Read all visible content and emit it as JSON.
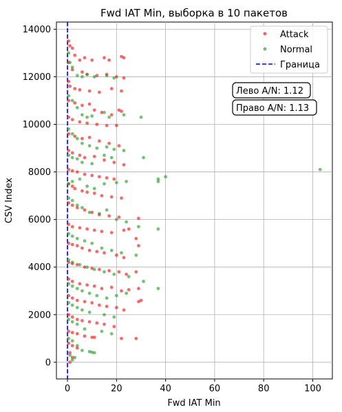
{
  "chart_data": {
    "type": "scatter",
    "title": "Fwd IAT Min, выборка в 10 пакетов",
    "xlabel": "Fwd IAT Min",
    "ylabel": "CSV Index",
    "xlim": [
      -4.5,
      108
    ],
    "ylim": [
      -700,
      14300
    ],
    "xticks": [
      0,
      20,
      40,
      60,
      80,
      100
    ],
    "yticks": [
      0,
      2000,
      4000,
      6000,
      8000,
      10000,
      12000,
      14000
    ],
    "grid": true,
    "legend_position": "top-right",
    "threshold": {
      "name": "Граница",
      "x": 0,
      "color": "#0000cc"
    },
    "annotations": [
      {
        "text": "Лево A/N: 1.12"
      },
      {
        "text": "Право A/N: 1.13"
      }
    ],
    "series": [
      {
        "name": "Attack",
        "color": "#ee1c1c",
        "points": [
          [
            0.5,
            13500
          ],
          [
            1,
            13300
          ],
          [
            2,
            13200
          ],
          [
            3,
            12900
          ],
          [
            5,
            12700
          ],
          [
            7,
            12800
          ],
          [
            10,
            12700
          ],
          [
            15,
            12800
          ],
          [
            17,
            12700
          ],
          [
            22,
            12850
          ],
          [
            23,
            12800
          ],
          [
            0.5,
            12600
          ],
          [
            2,
            12300
          ],
          [
            6,
            12200
          ],
          [
            8,
            12100
          ],
          [
            12,
            12050
          ],
          [
            16,
            12100
          ],
          [
            20,
            12000
          ],
          [
            23,
            11950
          ],
          [
            0.5,
            11800
          ],
          [
            1,
            11600
          ],
          [
            3,
            11500
          ],
          [
            5,
            11450
          ],
          [
            9,
            11400
          ],
          [
            13,
            11350
          ],
          [
            18,
            11500
          ],
          [
            22,
            11400
          ],
          [
            0.5,
            11000
          ],
          [
            3,
            10900
          ],
          [
            6,
            10800
          ],
          [
            9,
            10850
          ],
          [
            11,
            10600
          ],
          [
            14,
            10500
          ],
          [
            18,
            10400
          ],
          [
            21,
            10600
          ],
          [
            22,
            10550
          ],
          [
            0.5,
            10300
          ],
          [
            2,
            10200
          ],
          [
            5,
            10100
          ],
          [
            8,
            10050
          ],
          [
            12,
            10000
          ],
          [
            16,
            9950
          ],
          [
            20,
            9950
          ],
          [
            0.5,
            9600
          ],
          [
            3,
            9500
          ],
          [
            6,
            9400
          ],
          [
            9,
            9450
          ],
          [
            13,
            9300
          ],
          [
            17,
            9200
          ],
          [
            21,
            9100
          ],
          [
            0.5,
            8900
          ],
          [
            2,
            8800
          ],
          [
            5,
            8700
          ],
          [
            7,
            8600
          ],
          [
            11,
            8650
          ],
          [
            15,
            8500
          ],
          [
            19,
            8400
          ],
          [
            23,
            8300
          ],
          [
            0.5,
            8100
          ],
          [
            2,
            8050
          ],
          [
            4,
            8000
          ],
          [
            7,
            7900
          ],
          [
            10,
            7850
          ],
          [
            13,
            7800
          ],
          [
            16,
            7750
          ],
          [
            19,
            7700
          ],
          [
            0.5,
            7500
          ],
          [
            2,
            7400
          ],
          [
            3,
            7300
          ],
          [
            6,
            7200
          ],
          [
            8,
            7150
          ],
          [
            11,
            7100
          ],
          [
            14,
            7000
          ],
          [
            18,
            6950
          ],
          [
            22,
            6900
          ],
          [
            0.5,
            6700
          ],
          [
            2,
            6600
          ],
          [
            4,
            6500
          ],
          [
            7,
            6400
          ],
          [
            10,
            6300
          ],
          [
            13,
            6200
          ],
          [
            17,
            6150
          ],
          [
            21,
            6100
          ],
          [
            29,
            6050
          ],
          [
            0.5,
            5800
          ],
          [
            2,
            5700
          ],
          [
            5,
            5650
          ],
          [
            8,
            5600
          ],
          [
            11,
            5550
          ],
          [
            14,
            5500
          ],
          [
            18,
            5450
          ],
          [
            23,
            5550
          ],
          [
            25,
            5600
          ],
          [
            28,
            5200
          ],
          [
            0.5,
            5000
          ],
          [
            2,
            4950
          ],
          [
            4,
            4900
          ],
          [
            6,
            4800
          ],
          [
            9,
            4700
          ],
          [
            12,
            4650
          ],
          [
            15,
            4600
          ],
          [
            20,
            4500
          ],
          [
            23,
            4400
          ],
          [
            29,
            4900
          ],
          [
            0.5,
            4200
          ],
          [
            2,
            4150
          ],
          [
            4,
            4100
          ],
          [
            7,
            4000
          ],
          [
            10,
            3950
          ],
          [
            13,
            3900
          ],
          [
            17,
            3850
          ],
          [
            21,
            3800
          ],
          [
            24,
            3700
          ],
          [
            28,
            3800
          ],
          [
            0.5,
            3500
          ],
          [
            2,
            3400
          ],
          [
            5,
            3300
          ],
          [
            8,
            3250
          ],
          [
            11,
            3200
          ],
          [
            14,
            3100
          ],
          [
            18,
            3150
          ],
          [
            22,
            3000
          ],
          [
            25,
            3050
          ],
          [
            29,
            3100
          ],
          [
            0.5,
            2800
          ],
          [
            2,
            2700
          ],
          [
            4,
            2600
          ],
          [
            7,
            2550
          ],
          [
            10,
            2500
          ],
          [
            13,
            2400
          ],
          [
            16,
            2350
          ],
          [
            20,
            2300
          ],
          [
            23,
            2200
          ],
          [
            30,
            2600
          ],
          [
            29,
            2550
          ],
          [
            0.5,
            2000
          ],
          [
            2,
            1900
          ],
          [
            4,
            1800
          ],
          [
            6,
            1750
          ],
          [
            9,
            1700
          ],
          [
            12,
            1650
          ],
          [
            15,
            1600
          ],
          [
            19,
            1500
          ],
          [
            0.5,
            1300
          ],
          [
            2,
            1250
          ],
          [
            4,
            1200
          ],
          [
            7,
            1100
          ],
          [
            10,
            1050
          ],
          [
            11,
            1050
          ],
          [
            22,
            1000
          ],
          [
            28,
            1000
          ],
          [
            0.5,
            800
          ],
          [
            2,
            700
          ],
          [
            4,
            600
          ],
          [
            1,
            400
          ],
          [
            2,
            200
          ],
          [
            1,
            0
          ]
        ]
      },
      {
        "name": "Normal",
        "color": "#2ca02c",
        "points": [
          [
            0.5,
            13000
          ],
          [
            1,
            12600
          ],
          [
            2,
            12400
          ],
          [
            4,
            12050
          ],
          [
            6,
            12000
          ],
          [
            8,
            12100
          ],
          [
            11,
            12000
          ],
          [
            16,
            12050
          ],
          [
            19,
            11950
          ],
          [
            0.5,
            11200
          ],
          [
            2,
            11000
          ],
          [
            4,
            10700
          ],
          [
            6,
            10400
          ],
          [
            8,
            10300
          ],
          [
            10,
            10350
          ],
          [
            15,
            10500
          ],
          [
            17,
            10300
          ],
          [
            23,
            10400
          ],
          [
            30,
            10300
          ],
          [
            0.5,
            9800
          ],
          [
            2,
            9600
          ],
          [
            4,
            9400
          ],
          [
            6,
            9200
          ],
          [
            9,
            9100
          ],
          [
            12,
            9000
          ],
          [
            16,
            9050
          ],
          [
            19,
            8950
          ],
          [
            23,
            8900
          ],
          [
            0.5,
            8700
          ],
          [
            2,
            8600
          ],
          [
            4,
            8550
          ],
          [
            6,
            8400
          ],
          [
            10,
            8350
          ],
          [
            15,
            8700
          ],
          [
            18,
            8600
          ],
          [
            31,
            8600
          ],
          [
            37,
            7700
          ],
          [
            37,
            7600
          ],
          [
            40,
            7800
          ],
          [
            0.5,
            7500
          ],
          [
            2,
            7600
          ],
          [
            5,
            7700
          ],
          [
            8,
            7400
          ],
          [
            11,
            7300
          ],
          [
            15,
            7500
          ],
          [
            20,
            7550
          ],
          [
            24,
            7600
          ],
          [
            0.5,
            6900
          ],
          [
            2,
            6800
          ],
          [
            4,
            6600
          ],
          [
            6,
            6500
          ],
          [
            9,
            6300
          ],
          [
            13,
            6250
          ],
          [
            16,
            6400
          ],
          [
            20,
            6000
          ],
          [
            24,
            5900
          ],
          [
            29,
            5700
          ],
          [
            37,
            5600
          ],
          [
            0.5,
            5400
          ],
          [
            2,
            5300
          ],
          [
            4,
            5200
          ],
          [
            7,
            5100
          ],
          [
            10,
            5000
          ],
          [
            14,
            4800
          ],
          [
            18,
            4700
          ],
          [
            22,
            4600
          ],
          [
            28,
            4500
          ],
          [
            0.5,
            4300
          ],
          [
            2,
            4200
          ],
          [
            5,
            4100
          ],
          [
            8,
            4000
          ],
          [
            11,
            3900
          ],
          [
            15,
            3800
          ],
          [
            19,
            3700
          ],
          [
            25,
            3600
          ],
          [
            31,
            3400
          ],
          [
            37,
            3100
          ],
          [
            0.5,
            3300
          ],
          [
            2,
            3200
          ],
          [
            4,
            3100
          ],
          [
            6,
            3000
          ],
          [
            9,
            2900
          ],
          [
            12,
            2800
          ],
          [
            16,
            2700
          ],
          [
            20,
            2800
          ],
          [
            24,
            2900
          ],
          [
            0.5,
            2500
          ],
          [
            2,
            2400
          ],
          [
            4,
            2300
          ],
          [
            6,
            2200
          ],
          [
            9,
            2100
          ],
          [
            15,
            2000
          ],
          [
            19,
            1900
          ],
          [
            0.5,
            1800
          ],
          [
            2,
            1700
          ],
          [
            4,
            1600
          ],
          [
            7,
            1400
          ],
          [
            14,
            1300
          ],
          [
            18,
            1200
          ],
          [
            0.5,
            1000
          ],
          [
            2,
            900
          ],
          [
            4,
            700
          ],
          [
            6,
            500
          ],
          [
            9,
            450
          ],
          [
            10,
            420
          ],
          [
            11,
            400
          ],
          [
            1,
            300
          ],
          [
            3,
            200
          ],
          [
            2,
            100
          ],
          [
            103,
            8100
          ]
        ]
      }
    ]
  }
}
